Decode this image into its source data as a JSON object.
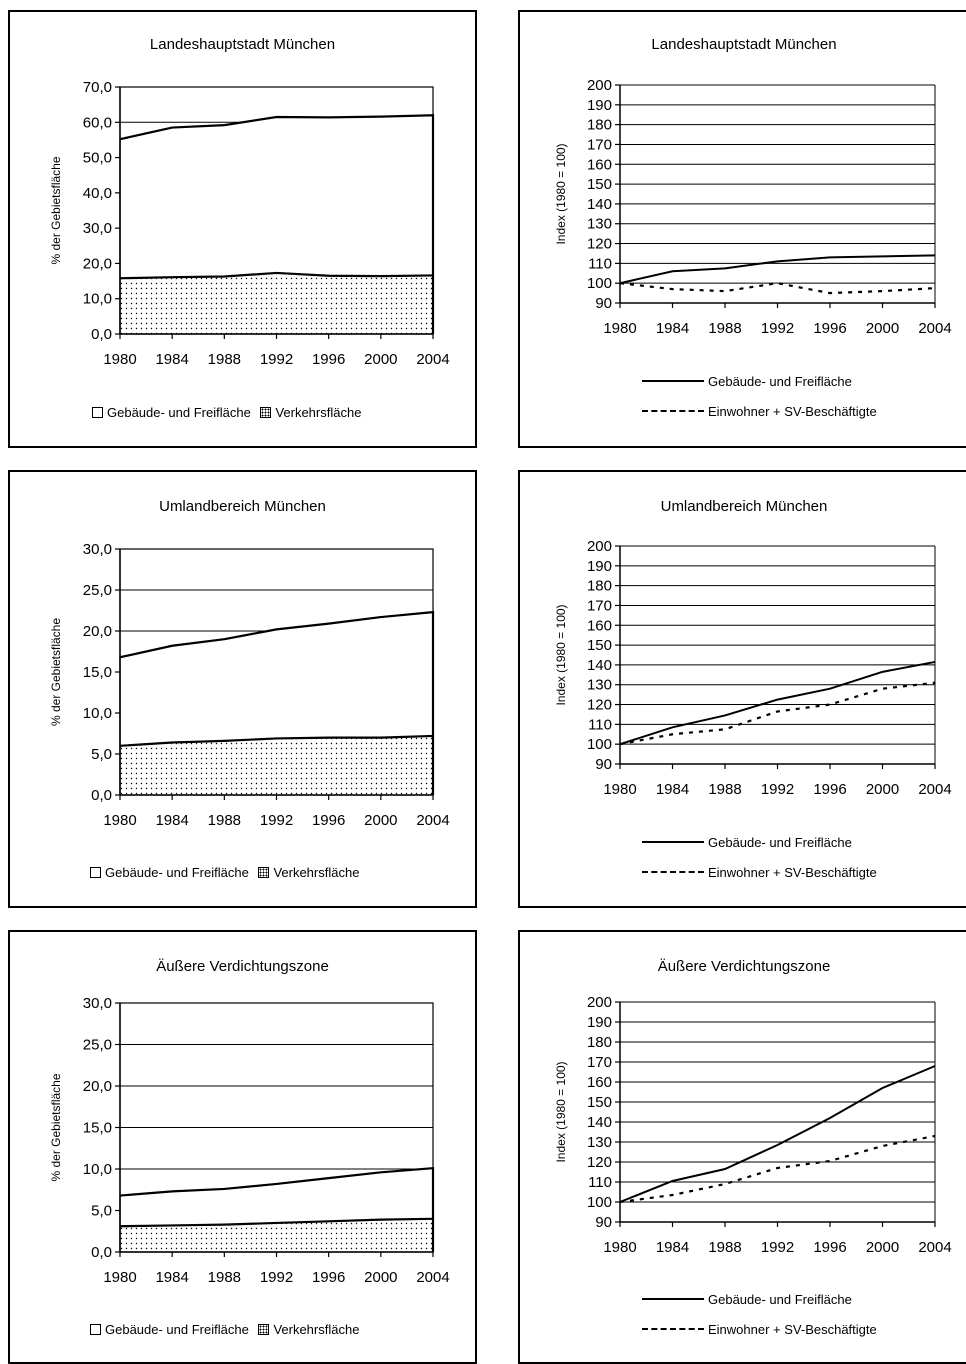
{
  "charts": [
    {
      "title": "Landeshauptstadt München",
      "chart_data": {
        "type": "area",
        "title": "Landeshauptstadt München",
        "ylabel": "% der Gebietsfläche",
        "x": [
          1980,
          1984,
          1988,
          1992,
          1996,
          2000,
          2004
        ],
        "xticks": [
          "1980",
          "1984",
          "1988",
          "1992",
          "1996",
          "2000",
          "2004"
        ],
        "yticks": [
          "0,0",
          "10,0",
          "20,0",
          "30,0",
          "40,0",
          "50,0",
          "60,0",
          "70,0"
        ],
        "ylim": [
          0,
          70
        ],
        "series": [
          {
            "name": "Gebäude- und Freifläche",
            "values": [
              55.2,
              58.5,
              59.2,
              61.5,
              61.4,
              61.6,
              62.0
            ]
          },
          {
            "name": "Verkehrsfläche",
            "values": [
              15.8,
              16.1,
              16.3,
              17.3,
              16.5,
              16.4,
              16.6
            ]
          }
        ],
        "legend_position": "bottom",
        "grid": true
      },
      "legend": [
        "Gebäude- und Freifläche",
        "Verkehrsfläche"
      ]
    },
    {
      "title": "Landeshauptstadt München",
      "chart_data": {
        "type": "line",
        "title": "Landeshauptstadt München",
        "ylabel": "Index (1980 = 100)",
        "x": [
          1980,
          1984,
          1988,
          1992,
          1996,
          2000,
          2004
        ],
        "xticks": [
          "1980",
          "1984",
          "1988",
          "1992",
          "1996",
          "2000",
          "2004"
        ],
        "yticks": [
          "90",
          "100",
          "110",
          "120",
          "130",
          "140",
          "150",
          "160",
          "170",
          "180",
          "190",
          "200"
        ],
        "ylim": [
          90,
          200
        ],
        "series": [
          {
            "name": "Gebäude- und Freifläche",
            "values": [
              100,
              106,
              107.5,
              111,
              113,
              113.5,
              114
            ]
          },
          {
            "name": "Einwohner + SV-Beschäftigte",
            "values": [
              100,
              97,
              96,
              100,
              95,
              96,
              97.5
            ]
          }
        ],
        "legend_position": "bottom",
        "grid": true
      },
      "legend": [
        "Gebäude- und Freifläche",
        "Einwohner + SV-Beschäftigte"
      ]
    },
    {
      "title": "Umlandbereich München",
      "chart_data": {
        "type": "area",
        "title": "Umlandbereich München",
        "ylabel": "% der Gebietsfläche",
        "x": [
          1980,
          1984,
          1988,
          1992,
          1996,
          2000,
          2004
        ],
        "xticks": [
          "1980",
          "1984",
          "1988",
          "1992",
          "1996",
          "2000",
          "2004"
        ],
        "yticks": [
          "0,0",
          "5,0",
          "10,0",
          "15,0",
          "20,0",
          "25,0",
          "30,0"
        ],
        "ylim": [
          0,
          30
        ],
        "series": [
          {
            "name": "Gebäude- und Freifläche",
            "values": [
              16.8,
              18.2,
              19.0,
              20.2,
              20.9,
              21.7,
              22.3
            ]
          },
          {
            "name": "Verkehrsfläche",
            "values": [
              6.0,
              6.4,
              6.6,
              6.9,
              7.0,
              7.0,
              7.2
            ]
          }
        ],
        "legend_position": "bottom",
        "grid": true
      },
      "legend": [
        "Gebäude- und Freifläche",
        "Verkehrsfläche"
      ]
    },
    {
      "title": "Umlandbereich München",
      "chart_data": {
        "type": "line",
        "title": "Umlandbereich München",
        "ylabel": "Index (1980 = 100)",
        "x": [
          1980,
          1984,
          1988,
          1992,
          1996,
          2000,
          2004
        ],
        "xticks": [
          "1980",
          "1984",
          "1988",
          "1992",
          "1996",
          "2000",
          "2004"
        ],
        "yticks": [
          "90",
          "100",
          "110",
          "120",
          "130",
          "140",
          "150",
          "160",
          "170",
          "180",
          "190",
          "200"
        ],
        "ylim": [
          90,
          200
        ],
        "series": [
          {
            "name": "Gebäude- und Freifläche",
            "values": [
              100,
              108.5,
              114.5,
              122.5,
              128,
              136.5,
              141.5
            ]
          },
          {
            "name": "Einwohner + SV-Beschäftigte",
            "values": [
              100,
              105,
              107.5,
              116.5,
              120,
              128,
              131
            ]
          }
        ],
        "legend_position": "bottom",
        "grid": true
      },
      "legend": [
        "Gebäude- und Freifläche",
        "Einwohner + SV-Beschäftigte"
      ]
    },
    {
      "title": "Äußere Verdichtungszone",
      "chart_data": {
        "type": "area",
        "title": "Äußere Verdichtungszone",
        "ylabel": "% der Gebietsfläche",
        "x": [
          1980,
          1984,
          1988,
          1992,
          1996,
          2000,
          2004
        ],
        "xticks": [
          "1980",
          "1984",
          "1988",
          "1992",
          "1996",
          "2000",
          "2004"
        ],
        "yticks": [
          "0,0",
          "5,0",
          "10,0",
          "15,0",
          "20,0",
          "25,0",
          "30,0"
        ],
        "ylim": [
          0,
          30
        ],
        "series": [
          {
            "name": "Gebäude- und Freifläche",
            "values": [
              6.8,
              7.3,
              7.6,
              8.2,
              8.9,
              9.6,
              10.1
            ]
          },
          {
            "name": "Verkehrsfläche",
            "values": [
              3.1,
              3.2,
              3.3,
              3.5,
              3.7,
              3.9,
              4.0
            ]
          }
        ],
        "legend_position": "bottom",
        "grid": true
      },
      "legend": [
        "Gebäude- und Freifläche",
        "Verkehrsfläche"
      ]
    },
    {
      "title": "Äußere Verdichtungszone",
      "chart_data": {
        "type": "line",
        "title": "Äußere Verdichtungszone",
        "ylabel": "Index (1980 = 100)",
        "x": [
          1980,
          1984,
          1988,
          1992,
          1996,
          2000,
          2004
        ],
        "xticks": [
          "1980",
          "1984",
          "1988",
          "1992",
          "1996",
          "2000",
          "2004"
        ],
        "yticks": [
          "90",
          "100",
          "110",
          "120",
          "130",
          "140",
          "150",
          "160",
          "170",
          "180",
          "190",
          "200"
        ],
        "ylim": [
          90,
          200
        ],
        "series": [
          {
            "name": "Gebäude- und Freifläche",
            "values": [
              100,
              110.5,
              116.5,
              128.5,
              142,
              157,
              168
            ]
          },
          {
            "name": "Einwohner + SV-Beschäftigte",
            "values": [
              100,
              103.5,
              109,
              117,
              120.5,
              128,
              133
            ]
          }
        ],
        "legend_position": "bottom",
        "grid": true
      },
      "legend": [
        "Gebäude- und Freifläche",
        "Einwohner + SV-Beschäftigte"
      ]
    }
  ]
}
